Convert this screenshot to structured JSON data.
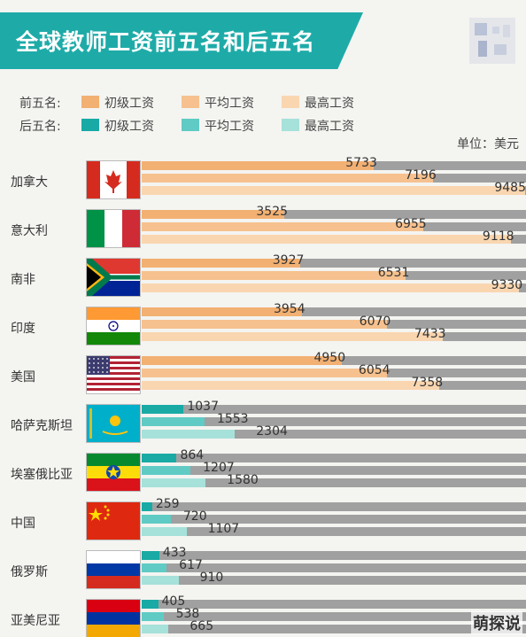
{
  "title": "全球教师工资前五名和后五名",
  "legend": {
    "top_group": {
      "label": "前五名:",
      "items": [
        "初级工资",
        "平均工资",
        "最高工资"
      ],
      "colors": [
        "#f2b072",
        "#f6c18e",
        "#f9d6b0"
      ]
    },
    "bottom_group": {
      "label": "后五名:",
      "items": [
        "初级工资",
        "平均工资",
        "最高工资"
      ],
      "colors": [
        "#19aaa5",
        "#5fcbc4",
        "#a6e1da"
      ]
    }
  },
  "unit": "单位：美元",
  "watermark": "萌探说",
  "chart_data": {
    "type": "bar",
    "orientation": "horizontal",
    "title": "全球教师工资前五名和后五名",
    "unit": "单位：美元",
    "categories": [
      "加拿大",
      "意大利",
      "南非",
      "印度",
      "美国",
      "哈萨克斯坦",
      "埃塞俄比亚",
      "中国",
      "俄罗斯",
      "亚美尼亚"
    ],
    "groups": [
      "前五名",
      "前五名",
      "前五名",
      "前五名",
      "前五名",
      "后五名",
      "后五名",
      "后五名",
      "后五名",
      "后五名"
    ],
    "flags": [
      "canada-flag",
      "italy-flag",
      "south-africa-flag",
      "india-flag",
      "usa-flag",
      "kazakhstan-flag",
      "ethiopia-flag",
      "china-flag",
      "russia-flag",
      "armenia-flag"
    ],
    "series": [
      {
        "name": "初级工资",
        "values": [
          5733,
          3525,
          3927,
          3954,
          4950,
          1037,
          864,
          259,
          433,
          405
        ]
      },
      {
        "name": "平均工资",
        "values": [
          7196,
          6955,
          6531,
          6070,
          6054,
          1553,
          1207,
          720,
          617,
          538
        ]
      },
      {
        "name": "最高工资",
        "values": [
          9485,
          9118,
          9330,
          7433,
          7358,
          2304,
          1580,
          1107,
          910,
          665
        ]
      }
    ],
    "xlim": [
      0,
      9500
    ],
    "legend_position": "top-left"
  }
}
